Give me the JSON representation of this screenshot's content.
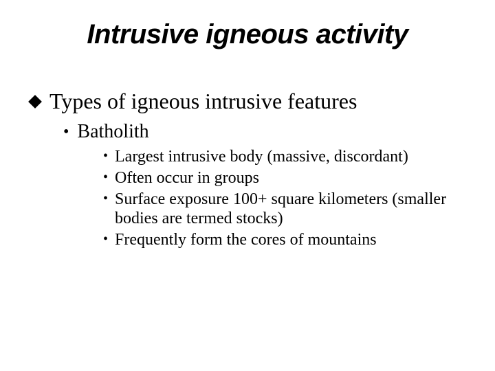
{
  "colors": {
    "background": "#ffffff",
    "text": "#000000",
    "bullet_diamond": "#000000"
  },
  "typography": {
    "title_font": "Arial",
    "title_fontsize": 40,
    "title_style": "bold italic",
    "body_font": "Times New Roman",
    "level1_fontsize": 32,
    "level2_fontsize": 28,
    "level3_fontsize": 24
  },
  "title": "Intrusive igneous activity",
  "level1": {
    "bullet": "diamond",
    "text": "Types of igneous intrusive features"
  },
  "level2": {
    "bullet": "•",
    "text": "Batholith"
  },
  "level3": {
    "bullet": "•",
    "items": [
      "Largest intrusive body (massive, discordant)",
      "Often occur in groups",
      "Surface exposure 100+ square kilometers (smaller bodies are termed stocks)",
      "Frequently form the cores of mountains"
    ]
  }
}
